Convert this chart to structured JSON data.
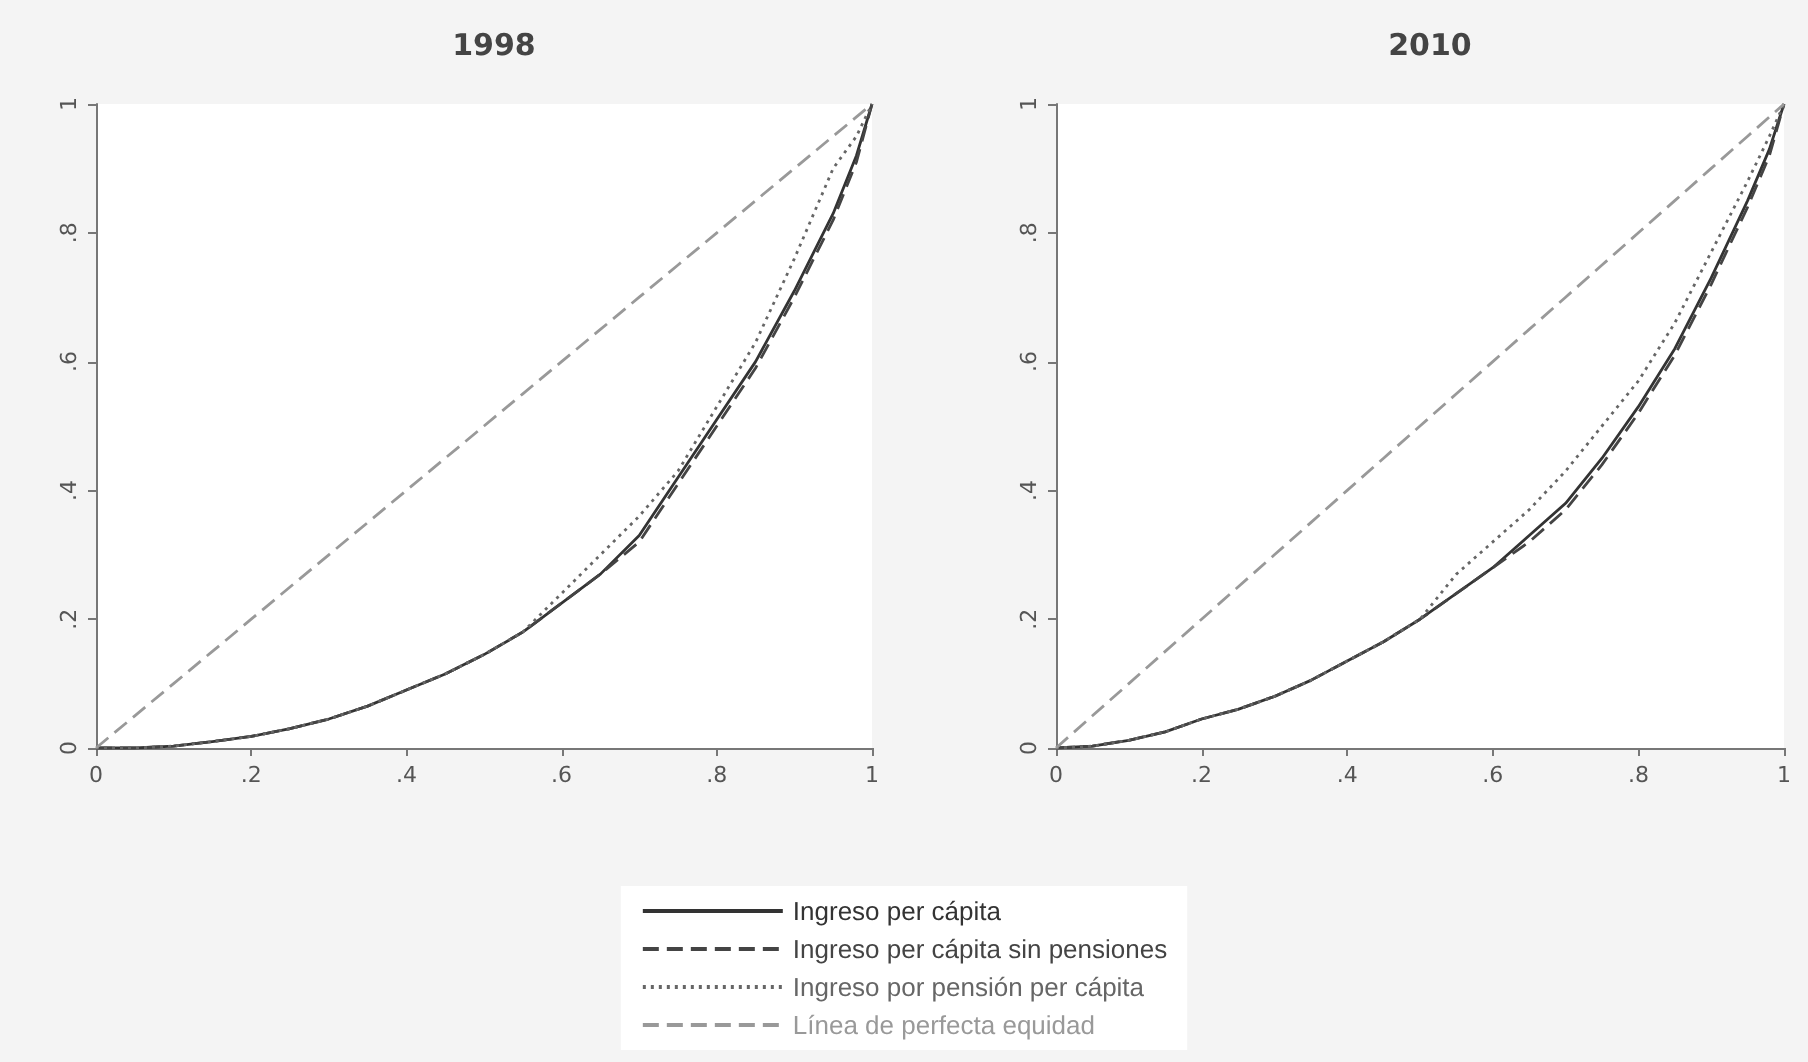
{
  "chart_data": [
    {
      "type": "line",
      "title": "1998",
      "x": [
        0,
        0.05,
        0.1,
        0.15,
        0.2,
        0.25,
        0.3,
        0.35,
        0.4,
        0.45,
        0.5,
        0.55,
        0.6,
        0.65,
        0.7,
        0.75,
        0.8,
        0.85,
        0.9,
        0.95,
        0.98,
        1
      ],
      "series": [
        {
          "name": "Ingreso per cápita",
          "color": "#333333",
          "line_style": "solid",
          "values": [
            0,
            0,
            0.003,
            0.01,
            0.018,
            0.03,
            0.045,
            0.065,
            0.09,
            0.115,
            0.145,
            0.18,
            0.225,
            0.27,
            0.33,
            0.42,
            0.51,
            0.6,
            0.71,
            0.83,
            0.92,
            1
          ]
        },
        {
          "name": "Ingreso per cápita sin pensiones",
          "color": "#444444",
          "line_style": "dashed",
          "values": [
            0,
            0,
            0.003,
            0.01,
            0.018,
            0.03,
            0.045,
            0.065,
            0.09,
            0.115,
            0.145,
            0.18,
            0.225,
            0.27,
            0.32,
            0.41,
            0.5,
            0.59,
            0.7,
            0.82,
            0.91,
            1
          ]
        },
        {
          "name": "Ingreso por pensión per cápita",
          "color": "#666666",
          "line_style": "dotted",
          "values": [
            0,
            0,
            0.003,
            0.01,
            0.018,
            0.03,
            0.045,
            0.065,
            0.09,
            0.115,
            0.145,
            0.18,
            0.24,
            0.3,
            0.36,
            0.43,
            0.53,
            0.63,
            0.76,
            0.9,
            0.95,
            1
          ]
        },
        {
          "name": "Línea de perfecta equidad",
          "color": "#999999",
          "line_style": "dashed",
          "values": [
            0,
            0.05,
            0.1,
            0.15,
            0.2,
            0.25,
            0.3,
            0.35,
            0.4,
            0.45,
            0.5,
            0.55,
            0.6,
            0.65,
            0.7,
            0.75,
            0.8,
            0.85,
            0.9,
            0.95,
            0.98,
            1
          ]
        }
      ],
      "xlim": [
        0,
        1
      ],
      "ylim": [
        0,
        1
      ],
      "xticks": [
        {
          "value": 0,
          "label": "0"
        },
        {
          "value": 0.2,
          "label": ".2"
        },
        {
          "value": 0.4,
          "label": ".4"
        },
        {
          "value": 0.6,
          "label": ".6"
        },
        {
          "value": 0.8,
          "label": ".8"
        },
        {
          "value": 1,
          "label": "1"
        }
      ],
      "yticks": [
        {
          "value": 0,
          "label": "0"
        },
        {
          "value": 0.2,
          "label": ".2"
        },
        {
          "value": 0.4,
          "label": ".4"
        },
        {
          "value": 0.6,
          "label": ".6"
        },
        {
          "value": 0.8,
          "label": ".8"
        },
        {
          "value": 1,
          "label": "1"
        }
      ],
      "grid": false,
      "marker": "none",
      "legend": "bottom"
    },
    {
      "type": "line",
      "title": "2010",
      "x": [
        0,
        0.05,
        0.1,
        0.15,
        0.2,
        0.25,
        0.3,
        0.35,
        0.4,
        0.45,
        0.5,
        0.55,
        0.6,
        0.65,
        0.7,
        0.75,
        0.8,
        0.85,
        0.9,
        0.95,
        0.98,
        1
      ],
      "series": [
        {
          "color": "#333333",
          "line_style": "solid",
          "values": [
            0,
            0.003,
            0.012,
            0.025,
            0.045,
            0.06,
            0.08,
            0.105,
            0.135,
            0.165,
            0.2,
            0.24,
            0.28,
            0.33,
            0.38,
            0.45,
            0.53,
            0.62,
            0.73,
            0.85,
            0.93,
            1
          ]
        },
        {
          "color": "#444444",
          "line_style": "dashed",
          "values": [
            0,
            0.003,
            0.012,
            0.025,
            0.045,
            0.06,
            0.08,
            0.105,
            0.135,
            0.165,
            0.2,
            0.24,
            0.28,
            0.32,
            0.37,
            0.44,
            0.52,
            0.61,
            0.72,
            0.84,
            0.92,
            1
          ]
        },
        {
          "color": "#666666",
          "line_style": "dotted",
          "values": [
            0,
            0.003,
            0.012,
            0.025,
            0.045,
            0.06,
            0.08,
            0.105,
            0.135,
            0.165,
            0.2,
            0.27,
            0.32,
            0.37,
            0.43,
            0.5,
            0.57,
            0.66,
            0.77,
            0.88,
            0.95,
            1
          ]
        },
        {
          "color": "#999999",
          "line_style": "dashed",
          "values": [
            0,
            0.05,
            0.1,
            0.15,
            0.2,
            0.25,
            0.3,
            0.35,
            0.4,
            0.45,
            0.5,
            0.55,
            0.6,
            0.65,
            0.7,
            0.75,
            0.8,
            0.85,
            0.9,
            0.95,
            0.98,
            1
          ]
        }
      ],
      "xlim": [
        0,
        1
      ],
      "ylim": [
        0,
        1
      ],
      "xticks": [
        {
          "value": 0,
          "label": "0"
        },
        {
          "value": 0.2,
          "label": ".2"
        },
        {
          "value": 0.4,
          "label": ".4"
        },
        {
          "value": 0.6,
          "label": ".6"
        },
        {
          "value": 0.8,
          "label": ".8"
        },
        {
          "value": 1,
          "label": "1"
        }
      ],
      "yticks": [
        {
          "value": 0,
          "label": "0"
        },
        {
          "value": 0.2,
          "label": ".2"
        },
        {
          "value": 0.4,
          "label": ".4"
        },
        {
          "value": 0.6,
          "label": ".6"
        },
        {
          "value": 0.8,
          "label": ".8"
        },
        {
          "value": 1,
          "label": "1"
        }
      ],
      "grid": false,
      "marker": "none",
      "legend": false
    }
  ]
}
